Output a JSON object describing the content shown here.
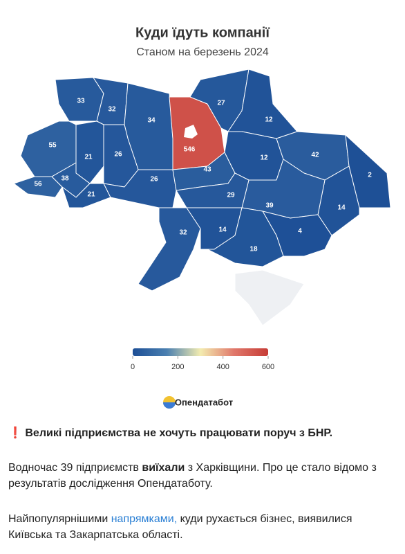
{
  "map": {
    "title": "Куди їдуть компанії",
    "subtitle": "Станом на березень 2024",
    "regions": [
      {
        "value": 33
      },
      {
        "value": 32
      },
      {
        "value": 34
      },
      {
        "value": 546
      },
      {
        "value": 27
      },
      {
        "value": 12
      },
      {
        "value": 55
      },
      {
        "value": 21
      },
      {
        "value": 26
      },
      {
        "value": 56
      },
      {
        "value": 38
      },
      {
        "value": 21
      },
      {
        "value": 26
      },
      {
        "value": 43
      },
      {
        "value": 12
      },
      {
        "value": 42
      },
      {
        "value": 2
      },
      {
        "value": 14
      },
      {
        "value": 39
      },
      {
        "value": 29
      },
      {
        "value": 32
      },
      {
        "value": 14
      },
      {
        "value": 4
      },
      {
        "value": 18
      }
    ],
    "scale": {
      "lim": [
        0,
        600
      ],
      "ticks": [
        0,
        200,
        400,
        600
      ],
      "colors": [
        "#1d4f96",
        "#4a7fb0",
        "#f3ecb0",
        "#e0776a",
        "#c63c36"
      ]
    },
    "logo": "Опендатабот"
  },
  "post": {
    "headline": "Великі підприємства не хочуть працювати поруч з БНР.",
    "paragraph1": {
      "before": "Водночас 39 підприємств ",
      "bold": "виїхали",
      "after": " з Харківщини. Про це стало відомо з результатів дослідження Опендатаботу."
    },
    "paragraph2": {
      "before": "Найпопулярнішими ",
      "link": "напрямками,",
      "after": " куди рухається бізнес, виявилися Київська та Закарпатська області."
    }
  }
}
